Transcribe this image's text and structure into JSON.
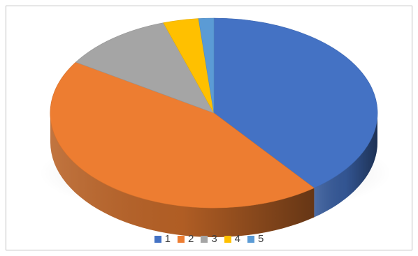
{
  "chart_data": {
    "type": "pie",
    "title": "",
    "categories": [
      "1",
      "2",
      "3",
      "4",
      "5"
    ],
    "values": [
      39.5,
      44.5,
      11,
      3.5,
      1.5
    ],
    "colors": [
      "#4472c4",
      "#ed7d31",
      "#a5a5a5",
      "#ffc000",
      "#5b9bd5"
    ],
    "start_angle_deg": 0,
    "direction": "clockwise",
    "style": "3d",
    "legend": "bottom"
  }
}
